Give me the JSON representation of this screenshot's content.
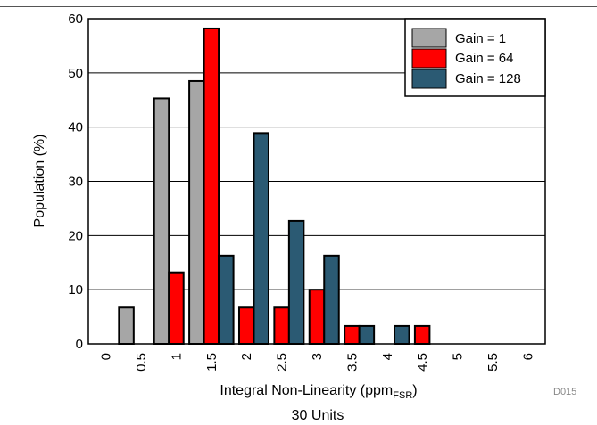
{
  "chart_data": {
    "type": "bar",
    "title": "30 Units",
    "xlabel": "Integral Non-Linearity (ppm",
    "xlabel_subscript": "FSR",
    "xlabel_suffix": ")",
    "ylabel": "Population (%)",
    "figure_code": "D015",
    "categories": [
      "0",
      "0.5",
      "1",
      "1.5",
      "2",
      "2.5",
      "3",
      "3.5",
      "4",
      "4.5",
      "5",
      "5.5",
      "6"
    ],
    "ylim": [
      0,
      60
    ],
    "yticks": [
      0,
      10,
      20,
      30,
      40,
      50,
      60
    ],
    "grid": true,
    "legend_position": "top-right",
    "series": [
      {
        "name": "Gain = 1",
        "color": "#a6a6a6",
        "values": [
          0,
          6.7,
          45.3,
          48.5,
          0,
          0,
          0,
          0,
          0,
          0,
          0,
          0,
          0
        ]
      },
      {
        "name": "Gain = 64",
        "color": "#ff0000",
        "values": [
          0,
          0,
          13.2,
          58.2,
          6.7,
          6.7,
          10,
          3.3,
          0,
          3.3,
          0,
          0,
          0
        ]
      },
      {
        "name": "Gain = 128",
        "color": "#2b5a73",
        "values": [
          0,
          0,
          0,
          16.3,
          38.9,
          22.7,
          16.3,
          3.3,
          3.3,
          0,
          0,
          0,
          0
        ]
      }
    ]
  }
}
